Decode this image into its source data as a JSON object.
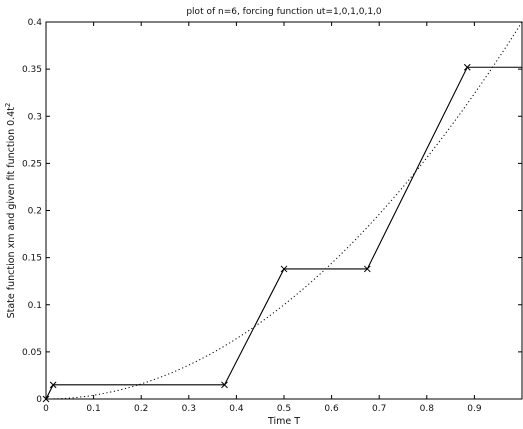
{
  "chart_data": {
    "type": "line",
    "title": "plot of n=6, forcing function ut=1,0,1,0,1,0",
    "xlabel": "Time T",
    "ylabel_prefix": "State function xm and given fit function 0.4t",
    "ylabel_superscript": "2",
    "xlim": [
      0,
      1
    ],
    "ylim": [
      0,
      0.4
    ],
    "grid": false,
    "x_ticks": [
      "0",
      "0.1",
      "0.2",
      "0.3",
      "0.4",
      "0.5",
      "0.6",
      "0.7",
      "0.8",
      "0.9"
    ],
    "y_ticks": [
      "0",
      "0.05",
      "0.1",
      "0.15",
      "0.2",
      "0.25",
      "0.3",
      "0.35",
      "0.4"
    ],
    "series": [
      {
        "style": "solid-with-x-markers",
        "color": "#000000",
        "x": [
          0.0,
          0.015,
          0.375,
          0.5,
          0.675,
          0.885,
          1.0
        ],
        "y": [
          0.0,
          0.015,
          0.015,
          0.138,
          0.138,
          0.352,
          0.352
        ],
        "markers_at": [
          0.0,
          0.015,
          0.375,
          0.5,
          0.675,
          0.885
        ]
      },
      {
        "style": "dotted",
        "color": "#000000",
        "function": "0.4*t^2",
        "coef": 0.4,
        "power": 2
      }
    ]
  }
}
